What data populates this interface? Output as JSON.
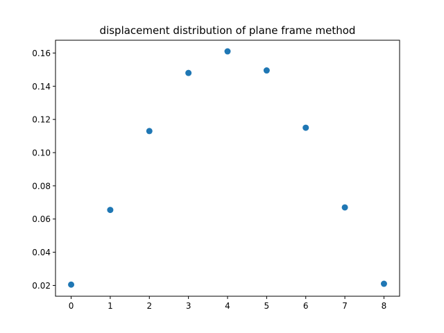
{
  "chart_data": {
    "type": "scatter",
    "title": "displacement distribution of plane frame method",
    "xlabel": "",
    "ylabel": "",
    "x": [
      0,
      1,
      2,
      3,
      4,
      5,
      6,
      7,
      8
    ],
    "y": [
      0.0205,
      0.0655,
      0.113,
      0.148,
      0.161,
      0.1495,
      0.115,
      0.067,
      0.021
    ],
    "xlim": [
      -0.4,
      8.4
    ],
    "ylim": [
      0.0135,
      0.1677
    ],
    "xticks": [
      0,
      1,
      2,
      3,
      4,
      5,
      6,
      7,
      8
    ],
    "xtick_labels": [
      "0",
      "1",
      "2",
      "3",
      "4",
      "5",
      "6",
      "7",
      "8"
    ],
    "yticks": [
      0.02,
      0.04,
      0.06,
      0.08,
      0.1,
      0.12,
      0.14,
      0.16
    ],
    "ytick_labels": [
      "0.02",
      "0.04",
      "0.06",
      "0.08",
      "0.10",
      "0.12",
      "0.14",
      "0.16"
    ],
    "grid": false,
    "marker_color": "#1f77b4"
  }
}
